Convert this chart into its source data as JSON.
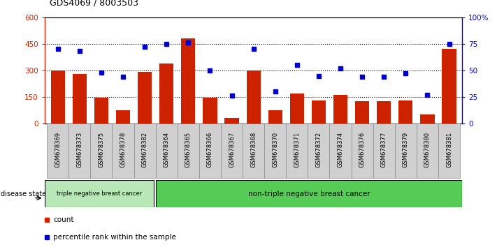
{
  "title": "GDS4069 / 8003503",
  "samples": [
    "GSM678369",
    "GSM678373",
    "GSM678375",
    "GSM678378",
    "GSM678382",
    "GSM678364",
    "GSM678365",
    "GSM678366",
    "GSM678367",
    "GSM678368",
    "GSM678370",
    "GSM678371",
    "GSM678372",
    "GSM678374",
    "GSM678376",
    "GSM678377",
    "GSM678379",
    "GSM678380",
    "GSM678381"
  ],
  "counts": [
    300,
    280,
    145,
    75,
    290,
    340,
    480,
    145,
    30,
    300,
    75,
    170,
    130,
    160,
    125,
    125,
    130,
    50,
    420
  ],
  "percentiles": [
    70,
    68,
    48,
    44,
    72,
    75,
    76,
    50,
    26,
    70,
    30,
    55,
    45,
    52,
    44,
    44,
    47,
    27,
    75
  ],
  "group1_label": "triple negative breast cancer",
  "group1_count": 5,
  "group2_label": "non-triple negative breast cancer",
  "group2_count": 14,
  "disease_state_label": "disease state",
  "left_yticks": [
    0,
    150,
    300,
    450,
    600
  ],
  "right_yticks": [
    0,
    25,
    50,
    75,
    100
  ],
  "right_yticklabels": [
    "0",
    "25",
    "50",
    "75",
    "100%"
  ],
  "bar_color": "#cc2200",
  "dot_color": "#0000cc",
  "group1_bg": "#b8e8b8",
  "group2_bg": "#55cc55",
  "xtick_bg": "#d0d0d0",
  "legend_count_label": "count",
  "legend_pct_label": "percentile rank within the sample",
  "hgrid_vals": [
    150,
    300,
    450
  ]
}
